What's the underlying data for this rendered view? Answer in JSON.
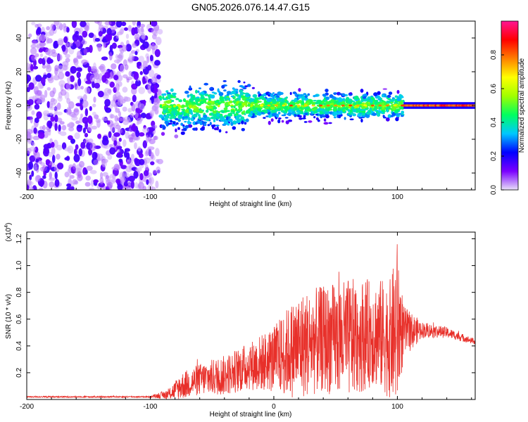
{
  "chart_data": [
    {
      "type": "heatmap",
      "title": "GN05.2026.076.14.47.G15",
      "xlabel": "Height of straight line (km)",
      "ylabel": "Frequency (Hz)",
      "xlim": [
        -200,
        163
      ],
      "ylim": [
        -50,
        50
      ],
      "xticks": [
        -200,
        -100,
        0,
        100
      ],
      "xtick_labels": [
        "-200",
        "-100",
        "0",
        "100"
      ],
      "yticks": [
        40,
        20,
        0,
        -20,
        -40
      ],
      "ytick_labels": [
        "40",
        "20",
        "0",
        "-20",
        "-40"
      ],
      "colorbar": {
        "label": "Normalized spectral amplitude",
        "range": [
          0,
          1
        ],
        "ticks": [
          0.0,
          0.2,
          0.4,
          0.6,
          0.8
        ],
        "tick_labels": [
          "0.0",
          "0.2",
          "0.4",
          "0.6",
          "0.8"
        ],
        "colormap": [
          "#e8e0f8",
          "#7a00ff",
          "#0000ff",
          "#00c8ff",
          "#00ff60",
          "#a0ff00",
          "#ffff00",
          "#ff8000",
          "#ff0000",
          "#ff1493"
        ]
      },
      "regions": [
        {
          "x_range": [
            -200,
            -92
          ],
          "description": "broadband noise",
          "amplitude": 0.15
        },
        {
          "x_range": [
            -92,
            105
          ],
          "centre_freq": 0,
          "spread_hz": 8,
          "amplitude": 0.45
        },
        {
          "x_range": [
            105,
            163
          ],
          "centre_freq": 0,
          "spread_hz": 2,
          "amplitude": 0.9
        }
      ]
    },
    {
      "type": "line",
      "title": "",
      "xlabel": "Height of straight line (km)",
      "ylabel": "SNR (10 * v/v)",
      "y_multiplier": "(x10",
      "y_multiplier_exp": "4",
      "y_multiplier_close": ")",
      "xlim": [
        -200,
        163
      ],
      "ylim": [
        0,
        1.25
      ],
      "xticks": [
        -200,
        -100,
        0,
        100
      ],
      "xtick_labels": [
        "-200",
        "-100",
        "0",
        "100"
      ],
      "yticks": [
        0.2,
        0.4,
        0.6,
        0.8,
        1.0,
        1.2
      ],
      "ytick_labels": [
        "0.2",
        "0.4",
        "0.6",
        "0.8",
        "1.0",
        "1.2"
      ],
      "series": [
        {
          "name": "SNR",
          "color": "#e8302a",
          "envelope_x": [
            -200,
            -100,
            -85,
            -75,
            -60,
            -40,
            -20,
            0,
            20,
            40,
            60,
            80,
            95,
            100,
            105,
            120,
            140,
            163
          ],
          "envelope_mean": [
            0.02,
            0.02,
            0.04,
            0.1,
            0.15,
            0.18,
            0.25,
            0.3,
            0.4,
            0.45,
            0.45,
            0.5,
            0.45,
            0.55,
            0.5,
            0.52,
            0.5,
            0.43
          ],
          "envelope_amp": [
            0.005,
            0.005,
            0.04,
            0.1,
            0.12,
            0.15,
            0.18,
            0.25,
            0.4,
            0.4,
            0.45,
            0.4,
            0.45,
            0.65,
            0.2,
            0.06,
            0.04,
            0.02
          ]
        }
      ]
    }
  ]
}
